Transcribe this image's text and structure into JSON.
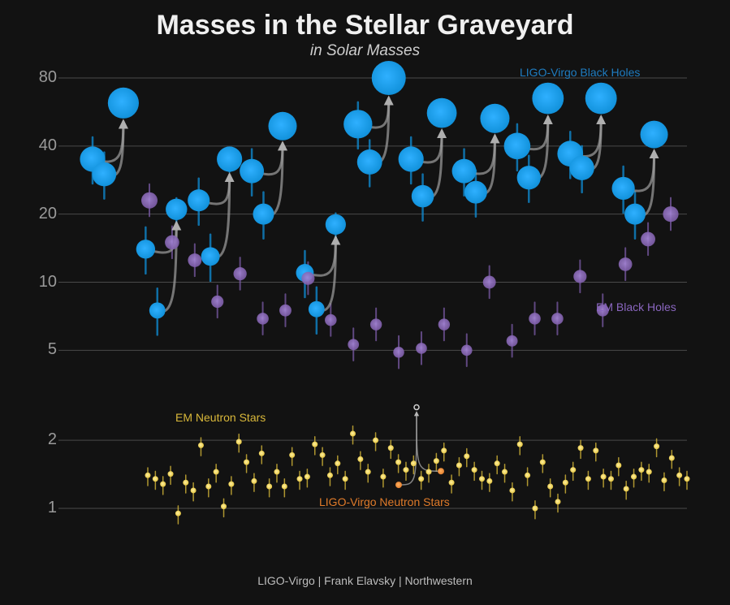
{
  "title": "Masses in the Stellar Graveyard",
  "subtitle": "in Solar Masses",
  "credit": "LIGO-Virgo | Frank Elavsky | Northwestern",
  "chart_data": {
    "type": "scatter",
    "yscale": "log",
    "ylim": [
      0.55,
      95
    ],
    "yticks": [
      "1",
      "2",
      "5",
      "10",
      "20",
      "40",
      "80"
    ],
    "grid": true,
    "legend_labels": {
      "ligo_bh": "LIGO-Virgo Black Holes",
      "em_bh": "EM Black Holes",
      "em_ns": "EM Neutron Stars",
      "ligo_ns": "LIGO-Virgo Neutron Stars"
    },
    "colors": {
      "ligo_bh": "#0f8fd8",
      "em_bh": "#7b5aa6",
      "em_ns": "#e3c23a",
      "ligo_ns": "#e07b2a",
      "arrow": "#a0a0a0",
      "grid": "#4a4a4a",
      "background": "#121212"
    },
    "ligo_bh_mergers": [
      {
        "m1": 35,
        "m2": 30,
        "final": 62
      },
      {
        "m1": 14,
        "m2": 7.5,
        "final": 21
      },
      {
        "m1": 23,
        "m2": 13,
        "final": 35
      },
      {
        "m1": 31,
        "m2": 20,
        "final": 49
      },
      {
        "m1": 11,
        "m2": 7.6,
        "final": 18
      },
      {
        "m1": 50,
        "m2": 34,
        "final": 80
      },
      {
        "m1": 35,
        "m2": 24,
        "final": 56
      },
      {
        "m1": 31,
        "m2": 25,
        "final": 53
      },
      {
        "m1": 40,
        "m2": 29,
        "final": 65
      },
      {
        "m1": 37,
        "m2": 32,
        "final": 65
      },
      {
        "m1": 26,
        "m2": 20,
        "final": 45
      }
    ],
    "em_black_holes": [
      23,
      15,
      12.5,
      8.2,
      10.9,
      6.9,
      7.5,
      10.4,
      6.8,
      5.3,
      6.5,
      4.9,
      5.1,
      6.5,
      5,
      10,
      5.5,
      6.9,
      6.9,
      10.6,
      7.5,
      12,
      15.5,
      20
    ],
    "em_neutron_stars": [
      1.4,
      1.35,
      1.28,
      1.42,
      0.95,
      1.3,
      1.2,
      1.9,
      1.25,
      1.45,
      1.02,
      1.28,
      1.97,
      1.6,
      1.32,
      1.75,
      1.25,
      1.45,
      1.25,
      1.72,
      1.35,
      1.38,
      1.92,
      1.72,
      1.4,
      1.58,
      1.35,
      2.14,
      1.65,
      1.45,
      2.0,
      1.38,
      1.85,
      1.6,
      1.48,
      1.58,
      1.35,
      1.45,
      1.62,
      1.8,
      1.3,
      1.55,
      1.7,
      1.48,
      1.35,
      1.32,
      1.58,
      1.45,
      1.2,
      1.92,
      1.4,
      1.0,
      1.6,
      1.25,
      1.07,
      1.3,
      1.48,
      1.85,
      1.35,
      1.8,
      1.38,
      1.35,
      1.55,
      1.22,
      1.38,
      1.48,
      1.45,
      1.88,
      1.33,
      1.67,
      1.4,
      1.35
    ],
    "ligo_neutron_stars": {
      "m1": 1.46,
      "m2": 1.27,
      "final": 2.8
    }
  }
}
